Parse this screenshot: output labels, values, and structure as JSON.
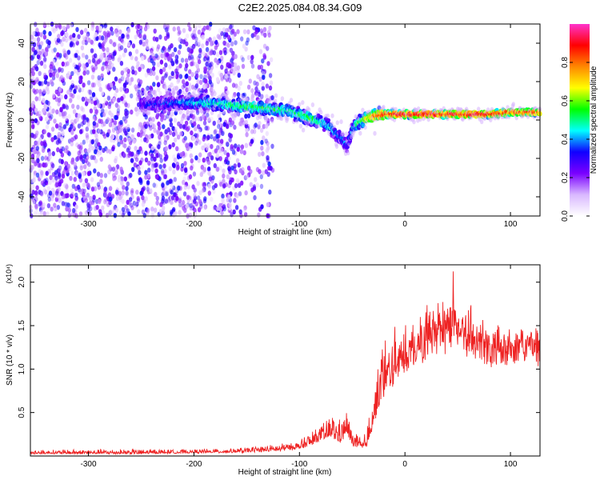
{
  "title": "C2E2.2025.084.08.34.G09",
  "chart_data": [
    {
      "type": "heatmap",
      "xlabel": "Height of straight line (km)",
      "ylabel": "Frequency (Hz)",
      "xlim": [
        -355,
        128
      ],
      "ylim": [
        -50,
        50
      ],
      "x_ticks": [
        -300,
        -200,
        -100,
        0,
        100
      ],
      "x_tick_labels": [
        "-300",
        "-200",
        "-100",
        "0",
        "100"
      ],
      "y_ticks": [
        -40,
        -20,
        0,
        20,
        40
      ],
      "y_tick_labels": [
        "-40",
        "-20",
        "0",
        "20",
        "40"
      ],
      "colorbar": {
        "label": "Normalized spectral amplitude",
        "range": [
          0.0,
          1.0
        ],
        "ticks": [
          0.0,
          0.2,
          0.4,
          0.6,
          0.8
        ],
        "tick_labels": [
          "0.0",
          "0.2",
          "0.4",
          "0.6",
          "0.8"
        ],
        "colormap": [
          "#ffffff",
          "#d9b8ff",
          "#7a00ff",
          "#1000ff",
          "#00ffff",
          "#00ff00",
          "#ffff00",
          "#ff8800",
          "#ff0000",
          "#ff33cc"
        ]
      },
      "noise_region": {
        "x": [
          -355,
          -125
        ],
        "amplitude": [
          0.05,
          0.35
        ]
      },
      "ridge": {
        "x": [
          -250,
          -220,
          -190,
          -170,
          -150,
          -130,
          -110,
          -90,
          -75,
          -65,
          -55,
          -48,
          -40,
          -30,
          -20,
          0,
          20,
          40,
          60,
          80,
          100,
          128
        ],
        "frequency": [
          8,
          9,
          9,
          8,
          7,
          6,
          5,
          1,
          -2,
          -7,
          -13,
          -3,
          0,
          2,
          3,
          3,
          3,
          3,
          3,
          3,
          4,
          4
        ],
        "amplitude": [
          0.3,
          0.35,
          0.45,
          0.5,
          0.55,
          0.5,
          0.5,
          0.55,
          0.45,
          0.4,
          0.35,
          0.45,
          0.6,
          0.75,
          0.9,
          0.95,
          0.95,
          0.9,
          0.95,
          0.9,
          0.85,
          0.85
        ]
      }
    },
    {
      "type": "line",
      "xlabel": "Height of straight line (km)",
      "ylabel": "SNR (10 * v/v)",
      "y_multiplier": "(x10⁴)",
      "xlim": [
        -355,
        128
      ],
      "ylim": [
        0,
        2.2
      ],
      "x_ticks": [
        -300,
        -200,
        -100,
        0,
        100
      ],
      "x_tick_labels": [
        "-300",
        "-200",
        "-100",
        "0",
        "100"
      ],
      "y_ticks": [
        0.5,
        1.0,
        1.5,
        2.0
      ],
      "y_tick_labels": [
        "0.5",
        "1.0",
        "1.5",
        "2.0"
      ],
      "series": [
        {
          "color": "#ee2222",
          "x": [
            -355,
            -300,
            -250,
            -200,
            -150,
            -120,
            -100,
            -90,
            -80,
            -70,
            -60,
            -55,
            -50,
            -40,
            -35,
            -30,
            -25,
            -20,
            -15,
            -10,
            -5,
            0,
            10,
            20,
            30,
            40,
            45,
            50,
            60,
            70,
            80,
            90,
            100,
            110,
            120,
            128
          ],
          "values": [
            0.03,
            0.03,
            0.03,
            0.04,
            0.05,
            0.07,
            0.1,
            0.15,
            0.22,
            0.25,
            0.2,
            0.3,
            0.15,
            0.08,
            0.15,
            0.45,
            0.7,
            0.85,
            0.9,
            1.05,
            1.15,
            1.2,
            1.35,
            1.45,
            1.55,
            1.55,
            1.7,
            1.5,
            1.45,
            1.4,
            1.35,
            1.35,
            1.4,
            1.4,
            1.4,
            1.35
          ],
          "peak_values": [
            0.07,
            0.08,
            0.08,
            0.08,
            0.1,
            0.15,
            0.18,
            0.28,
            0.35,
            0.5,
            0.45,
            0.55,
            0.3,
            0.2,
            0.4,
            0.85,
            1.1,
            1.55,
            1.35,
            1.5,
            1.55,
            1.6,
            1.7,
            1.8,
            1.9,
            2.05,
            2.25,
            1.9,
            1.8,
            1.7,
            1.65,
            1.6,
            1.6,
            1.55,
            1.55,
            1.5
          ]
        }
      ]
    }
  ]
}
